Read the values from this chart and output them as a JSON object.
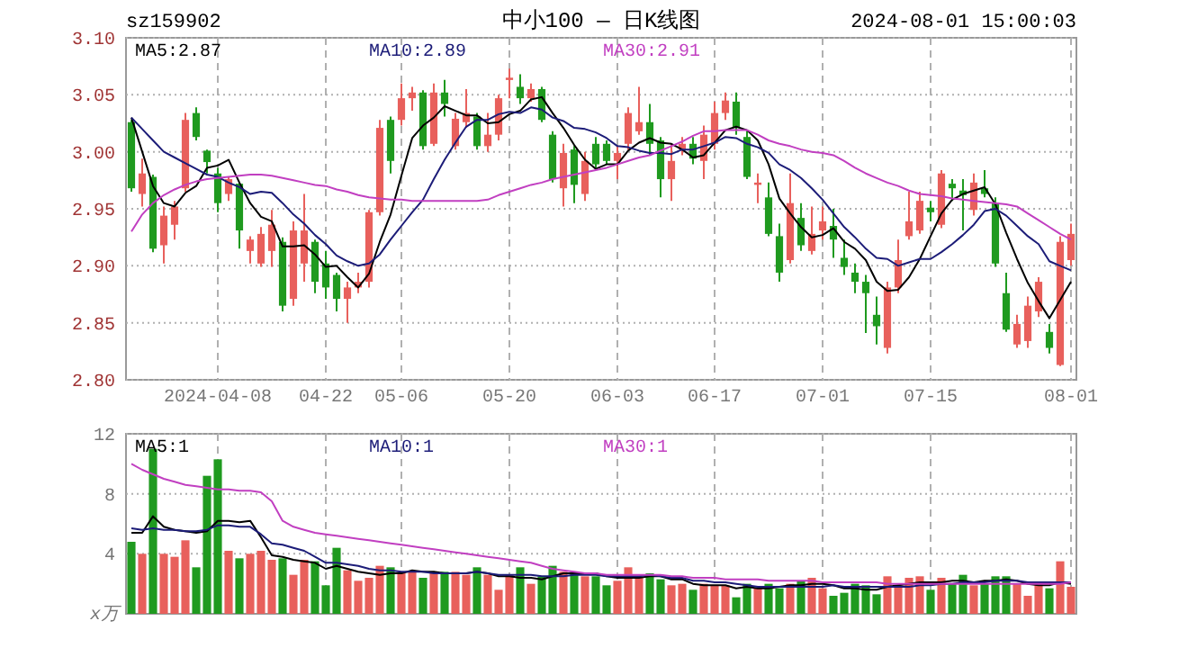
{
  "chart_data": [
    {
      "type": "candlestick",
      "title": "中小100 — 日K线图",
      "subtitle": "sz159902",
      "annotations": [
        "2024-08-01 15:00:03"
      ],
      "categories": [
        null,
        null,
        null,
        null,
        null,
        null,
        null,
        null,
        "2024-04-08",
        null,
        null,
        null,
        null,
        null,
        null,
        null,
        null,
        null,
        "04-22",
        null,
        null,
        null,
        null,
        null,
        null,
        "05-06",
        null,
        null,
        null,
        null,
        null,
        null,
        null,
        null,
        null,
        "05-20",
        null,
        null,
        null,
        null,
        null,
        null,
        null,
        null,
        null,
        "06-03",
        null,
        null,
        null,
        null,
        null,
        null,
        null,
        null,
        "06-17",
        null,
        null,
        null,
        null,
        null,
        null,
        null,
        null,
        null,
        "07-01",
        null,
        null,
        null,
        null,
        null,
        null,
        null,
        null,
        null,
        "07-15",
        null,
        null,
        null,
        null,
        null,
        null,
        null,
        null,
        null,
        null,
        null,
        null,
        "08-01"
      ],
      "ylim": [
        2.8,
        3.1
      ],
      "yticks": [
        {
          "value": 2.8,
          "label": "2.80"
        },
        {
          "value": 2.85,
          "label": "2.85"
        },
        {
          "value": 2.9,
          "label": "2.90"
        },
        {
          "value": 2.95,
          "label": "2.95"
        },
        {
          "value": 3.0,
          "label": "3.00"
        },
        {
          "value": 3.05,
          "label": "3.05"
        },
        {
          "value": 3.1,
          "label": "3.10"
        }
      ],
      "grid": true,
      "legend": "top",
      "series": [
        {
          "ohlc": [
            [
              3.026,
              3.028,
              2.965,
              2.968
            ],
            [
              2.963,
              2.994,
              2.952,
              2.981
            ],
            [
              2.978,
              2.98,
              2.912,
              2.915
            ],
            [
              2.918,
              2.952,
              2.902,
              2.944
            ],
            [
              2.936,
              2.957,
              2.923,
              2.952
            ],
            [
              2.968,
              3.034,
              2.965,
              3.028
            ],
            [
              3.034,
              3.039,
              3.01,
              3.013
            ],
            [
              3.001,
              3.002,
              2.981,
              2.991
            ],
            [
              2.981,
              2.986,
              2.947,
              2.955
            ],
            [
              2.963,
              2.978,
              2.957,
              2.976
            ],
            [
              2.972,
              2.973,
              2.915,
              2.931
            ],
            [
              2.913,
              2.926,
              2.902,
              2.923
            ],
            [
              2.902,
              2.934,
              2.899,
              2.928
            ],
            [
              2.913,
              2.949,
              2.899,
              2.936
            ],
            [
              2.921,
              2.925,
              2.86,
              2.865
            ],
            [
              2.871,
              2.939,
              2.865,
              2.931
            ],
            [
              2.902,
              2.963,
              2.886,
              2.931
            ],
            [
              2.921,
              2.923,
              2.876,
              2.886
            ],
            [
              2.902,
              2.913,
              2.871,
              2.881
            ],
            [
              2.892,
              2.894,
              2.86,
              2.871
            ],
            [
              2.871,
              2.886,
              2.85,
              2.881
            ],
            [
              2.881,
              2.894,
              2.876,
              2.886
            ],
            [
              2.886,
              2.949,
              2.881,
              2.947
            ],
            [
              2.947,
              3.028,
              2.944,
              3.021
            ],
            [
              3.028,
              3.031,
              2.981,
              2.992
            ],
            [
              3.028,
              3.06,
              3.023,
              3.047
            ],
            [
              3.047,
              3.057,
              3.036,
              3.052
            ],
            [
              3.052,
              3.054,
              3.002,
              3.005
            ],
            [
              3.007,
              3.06,
              3.005,
              3.052
            ],
            [
              3.052,
              3.063,
              3.031,
              3.042
            ],
            [
              3.005,
              3.034,
              3.002,
              3.029
            ],
            [
              3.026,
              3.055,
              3.021,
              3.034
            ],
            [
              3.031,
              3.034,
              3.002,
              3.005
            ],
            [
              3.005,
              3.034,
              3.0,
              3.015
            ],
            [
              3.015,
              3.05,
              3.01,
              3.047
            ],
            [
              3.063,
              3.073,
              3.047,
              3.065
            ],
            [
              3.057,
              3.068,
              3.042,
              3.047
            ],
            [
              3.047,
              3.06,
              3.044,
              3.055
            ],
            [
              3.055,
              3.057,
              3.026,
              3.028
            ],
            [
              3.015,
              3.018,
              2.973,
              2.976
            ],
            [
              2.968,
              3.007,
              2.952,
              2.999
            ],
            [
              3.002,
              3.005,
              2.955,
              2.971
            ],
            [
              2.963,
              3.0,
              2.957,
              2.992
            ],
            [
              3.007,
              3.013,
              2.986,
              2.989
            ],
            [
              3.007,
              3.01,
              2.989,
              2.992
            ],
            [
              2.992,
              3.005,
              2.976,
              2.999
            ],
            [
              3.007,
              3.039,
              3.002,
              3.034
            ],
            [
              3.018,
              3.057,
              3.015,
              3.026
            ],
            [
              3.026,
              3.042,
              2.997,
              3.007
            ],
            [
              3.01,
              3.013,
              2.96,
              2.976
            ],
            [
              2.976,
              3.007,
              2.957,
              2.992
            ],
            [
              3.002,
              3.013,
              2.997,
              3.007
            ],
            [
              3.007,
              3.013,
              2.989,
              2.994
            ],
            [
              2.992,
              3.023,
              2.976,
              3.015
            ],
            [
              3.007,
              3.044,
              3.002,
              3.034
            ],
            [
              3.034,
              3.052,
              3.028,
              3.045
            ],
            [
              3.044,
              3.052,
              3.015,
              3.021
            ],
            [
              3.013,
              3.018,
              2.976,
              2.978
            ],
            [
              2.971,
              2.981,
              2.955,
              2.973
            ],
            [
              2.96,
              2.973,
              2.926,
              2.928
            ],
            [
              2.926,
              2.937,
              2.886,
              2.894
            ],
            [
              2.905,
              2.981,
              2.902,
              2.955
            ],
            [
              2.942,
              2.955,
              2.913,
              2.918
            ],
            [
              2.913,
              2.952,
              2.91,
              2.928
            ],
            [
              2.931,
              2.952,
              2.923,
              2.939
            ],
            [
              2.935,
              2.95,
              2.907,
              2.923
            ],
            [
              2.907,
              2.923,
              2.892,
              2.899
            ],
            [
              2.894,
              2.902,
              2.876,
              2.886
            ],
            [
              2.886,
              2.892,
              2.841,
              2.876
            ],
            [
              2.857,
              2.873,
              2.831,
              2.847
            ],
            [
              2.828,
              2.886,
              2.823,
              2.881
            ],
            [
              2.881,
              2.923,
              2.876,
              2.905
            ],
            [
              2.926,
              2.965,
              2.923,
              2.939
            ],
            [
              2.931,
              2.965,
              2.928,
              2.957
            ],
            [
              2.951,
              2.957,
              2.939,
              2.947
            ],
            [
              2.936,
              2.984,
              2.933,
              2.981
            ],
            [
              2.972,
              2.976,
              2.957,
              2.968
            ],
            [
              2.966,
              2.976,
              2.931,
              2.962
            ],
            [
              2.949,
              2.981,
              2.944,
              2.973
            ],
            [
              2.968,
              2.984,
              2.96,
              2.963
            ],
            [
              2.955,
              2.96,
              2.899,
              2.902
            ],
            [
              2.876,
              2.894,
              2.842,
              2.844
            ],
            [
              2.831,
              2.857,
              2.828,
              2.849
            ],
            [
              2.834,
              2.873,
              2.828,
              2.865
            ],
            [
              2.86,
              2.89,
              2.855,
              2.886
            ],
            [
              2.842,
              2.849,
              2.823,
              2.828
            ],
            [
              2.813,
              2.926,
              2.812,
              2.921
            ],
            [
              2.905,
              2.937,
              2.9,
              2.928
            ]
          ],
          "colors": [
            "#1f9a1f",
            "#e8605c",
            "#1f9a1f",
            "#e8605c",
            "#e8605c",
            "#e8605c",
            "#1f9a1f",
            "#1f9a1f",
            "#1f9a1f",
            "#e8605c",
            "#1f9a1f",
            "#e8605c",
            "#e8605c",
            "#e8605c",
            "#1f9a1f",
            "#e8605c",
            "#e8605c",
            "#1f9a1f",
            "#1f9a1f",
            "#1f9a1f",
            "#e8605c",
            "#e8605c",
            "#e8605c",
            "#e8605c",
            "#1f9a1f",
            "#e8605c",
            "#e8605c",
            "#1f9a1f",
            "#e8605c",
            "#1f9a1f",
            "#e8605c",
            "#e8605c",
            "#1f9a1f",
            "#e8605c",
            "#e8605c",
            "#e8605c",
            "#1f9a1f",
            "#e8605c",
            "#1f9a1f",
            "#1f9a1f",
            "#e8605c",
            "#1f9a1f",
            "#e8605c",
            "#1f9a1f",
            "#1f9a1f",
            "#e8605c",
            "#e8605c",
            "#e8605c",
            "#1f9a1f",
            "#1f9a1f",
            "#e8605c",
            "#e8605c",
            "#1f9a1f",
            "#e8605c",
            "#e8605c",
            "#e8605c",
            "#1f9a1f",
            "#1f9a1f",
            "#e8605c",
            "#1f9a1f",
            "#1f9a1f",
            "#e8605c",
            "#1f9a1f",
            "#e8605c",
            "#e8605c",
            "#1f9a1f",
            "#1f9a1f",
            "#1f9a1f",
            "#1f9a1f",
            "#1f9a1f",
            "#e8605c",
            "#e8605c",
            "#e8605c",
            "#e8605c",
            "#1f9a1f",
            "#e8605c",
            "#1f9a1f",
            "#1f9a1f",
            "#e8605c",
            "#1f9a1f",
            "#1f9a1f",
            "#1f9a1f",
            "#e8605c",
            "#e8605c",
            "#e8605c",
            "#1f9a1f",
            "#e8605c",
            "#e8605c"
          ]
        },
        {
          "type": "line",
          "name": "MA5:2.87",
          "color": "#000000",
          "values": [
            3.03,
            3.0,
            2.97,
            2.955,
            2.952,
            2.964,
            2.97,
            2.986,
            2.988,
            2.993,
            2.973,
            2.955,
            2.943,
            2.939,
            2.917,
            2.917,
            2.918,
            2.91,
            2.899,
            2.9,
            2.89,
            2.881,
            2.893,
            2.921,
            2.945,
            2.979,
            3.012,
            3.023,
            3.03,
            3.04,
            3.036,
            3.032,
            3.032,
            3.025,
            3.026,
            3.033,
            3.036,
            3.046,
            3.048,
            3.034,
            3.021,
            3.006,
            2.993,
            2.985,
            2.989,
            2.989,
            3.001,
            3.008,
            3.012,
            3.008,
            3.007,
            3.002,
            2.995,
            2.997,
            3.008,
            3.019,
            3.022,
            3.019,
            3.01,
            2.989,
            2.959,
            2.946,
            2.934,
            2.925,
            2.927,
            2.933,
            2.921,
            2.915,
            2.905,
            2.886,
            2.878,
            2.879,
            2.89,
            2.906,
            2.926,
            2.946,
            2.958,
            2.963,
            2.966,
            2.969,
            2.954,
            2.929,
            2.906,
            2.885,
            2.869,
            2.854,
            2.87,
            2.886
          ]
        },
        {
          "type": "line",
          "name": "MA10:2.89",
          "color": "#1c1c78",
          "values": [
            3.03,
            3.02,
            3.01,
            3.0,
            2.995,
            2.99,
            2.985,
            2.98,
            2.978,
            2.973,
            2.969,
            2.963,
            2.965,
            2.964,
            2.955,
            2.945,
            2.937,
            2.927,
            2.919,
            2.909,
            2.904,
            2.9,
            2.902,
            2.91,
            2.923,
            2.935,
            2.947,
            2.958,
            2.976,
            2.993,
            3.008,
            3.022,
            3.028,
            3.028,
            3.033,
            3.035,
            3.034,
            3.039,
            3.037,
            3.03,
            3.027,
            3.021,
            3.02,
            3.017,
            3.012,
            3.005,
            3.004,
            3.001,
            2.999,
            2.999,
            2.998,
            3.002,
            3.002,
            3.005,
            3.008,
            3.013,
            3.012,
            3.007,
            3.004,
            2.999,
            2.989,
            2.984,
            2.977,
            2.968,
            2.958,
            2.946,
            2.934,
            2.925,
            2.915,
            2.907,
            2.906,
            2.9,
            2.903,
            2.906,
            2.906,
            2.912,
            2.919,
            2.927,
            2.936,
            2.948,
            2.95,
            2.944,
            2.935,
            2.926,
            2.919,
            2.904,
            2.9,
            2.896
          ]
        },
        {
          "type": "line",
          "name": "MA30:2.91",
          "color": "#c13fc1",
          "values": [
            2.93,
            2.945,
            2.955,
            2.962,
            2.967,
            2.971,
            2.974,
            2.976,
            2.977,
            2.978,
            2.979,
            2.98,
            2.98,
            2.979,
            2.977,
            2.975,
            2.973,
            2.971,
            2.97,
            2.967,
            2.965,
            2.962,
            2.96,
            2.959,
            2.958,
            2.958,
            2.957,
            2.957,
            2.957,
            2.957,
            2.957,
            2.957,
            2.957,
            2.958,
            2.962,
            2.965,
            2.968,
            2.971,
            2.973,
            2.976,
            2.978,
            2.98,
            2.982,
            2.984,
            2.986,
            2.989,
            2.992,
            2.995,
            2.997,
            3.001,
            3.005,
            3.009,
            3.014,
            3.018,
            3.018,
            3.019,
            3.019,
            3.019,
            3.015,
            3.01,
            3.007,
            3.005,
            3.002,
            3.0,
            2.999,
            2.997,
            2.992,
            2.986,
            2.981,
            2.977,
            2.973,
            2.97,
            2.966,
            2.963,
            2.962,
            2.961,
            2.959,
            2.958,
            2.957,
            2.956,
            2.955,
            2.954,
            2.952,
            2.946,
            2.94,
            2.934,
            2.928,
            2.923
          ]
        }
      ]
    },
    {
      "type": "bar",
      "ylabel": "x万",
      "tick_labels": "y",
      "categories": [
        null,
        null,
        null,
        null,
        null,
        null,
        null,
        null,
        null,
        null,
        null,
        null,
        null,
        null,
        null,
        null,
        null,
        null,
        null,
        null,
        null,
        null,
        null,
        null,
        null,
        null,
        null,
        null,
        null,
        null,
        null,
        null,
        null,
        null,
        null,
        null,
        null,
        null,
        null,
        null,
        null,
        null,
        null,
        null,
        null,
        null,
        null,
        null,
        null,
        null,
        null,
        null,
        null,
        null,
        null,
        null,
        null,
        null,
        null,
        null,
        null,
        null,
        null,
        null,
        null,
        null,
        null,
        null,
        null,
        null,
        null,
        null,
        null,
        null,
        null,
        null,
        null,
        null,
        null,
        null,
        null,
        null,
        null,
        null,
        null,
        null,
        null,
        null
      ],
      "ylim": [
        0,
        12
      ],
      "yticks": [
        4,
        8,
        12
      ],
      "grid": true,
      "legend": "top",
      "series": [
        {
          "values": [
            4.8,
            4.0,
            11.0,
            4.0,
            3.8,
            4.9,
            3.1,
            9.2,
            10.3,
            4.2,
            3.7,
            4.0,
            4.2,
            3.6,
            3.7,
            2.6,
            3.6,
            3.5,
            1.9,
            4.4,
            2.9,
            2.2,
            2.4,
            3.2,
            3.1,
            2.8,
            2.8,
            2.4,
            2.8,
            2.8,
            2.8,
            2.6,
            3.1,
            2.6,
            1.6,
            2.6,
            3.1,
            2.0,
            2.5,
            3.2,
            2.8,
            2.8,
            2.5,
            2.5,
            1.9,
            2.2,
            3.1,
            2.4,
            2.7,
            2.3,
            1.9,
            2.0,
            1.6,
            2.0,
            1.9,
            1.9,
            1.1,
            2.0,
            1.7,
            2.0,
            1.7,
            2.0,
            2.2,
            2.4,
            1.7,
            1.2,
            1.4,
            2.0,
            1.9,
            1.3,
            2.5,
            1.9,
            2.4,
            2.5,
            1.6,
            2.4,
            2.0,
            2.6,
            1.9,
            2.0,
            2.5,
            2.5,
            2.0,
            1.2,
            2.0,
            1.7,
            3.5,
            1.8
          ],
          "colors": [
            "#1f9a1f",
            "#e8605c",
            "#1f9a1f",
            "#e8605c",
            "#e8605c",
            "#e8605c",
            "#1f9a1f",
            "#1f9a1f",
            "#1f9a1f",
            "#e8605c",
            "#1f9a1f",
            "#e8605c",
            "#e8605c",
            "#e8605c",
            "#1f9a1f",
            "#e8605c",
            "#e8605c",
            "#1f9a1f",
            "#1f9a1f",
            "#1f9a1f",
            "#e8605c",
            "#e8605c",
            "#e8605c",
            "#e8605c",
            "#1f9a1f",
            "#e8605c",
            "#e8605c",
            "#1f9a1f",
            "#e8605c",
            "#1f9a1f",
            "#e8605c",
            "#e8605c",
            "#1f9a1f",
            "#e8605c",
            "#e8605c",
            "#e8605c",
            "#1f9a1f",
            "#e8605c",
            "#1f9a1f",
            "#1f9a1f",
            "#e8605c",
            "#1f9a1f",
            "#e8605c",
            "#1f9a1f",
            "#1f9a1f",
            "#e8605c",
            "#e8605c",
            "#e8605c",
            "#1f9a1f",
            "#1f9a1f",
            "#e8605c",
            "#e8605c",
            "#1f9a1f",
            "#e8605c",
            "#e8605c",
            "#e8605c",
            "#1f9a1f",
            "#1f9a1f",
            "#e8605c",
            "#1f9a1f",
            "#1f9a1f",
            "#e8605c",
            "#1f9a1f",
            "#e8605c",
            "#e8605c",
            "#1f9a1f",
            "#1f9a1f",
            "#1f9a1f",
            "#1f9a1f",
            "#1f9a1f",
            "#e8605c",
            "#e8605c",
            "#e8605c",
            "#e8605c",
            "#1f9a1f",
            "#e8605c",
            "#1f9a1f",
            "#1f9a1f",
            "#e8605c",
            "#1f9a1f",
            "#1f9a1f",
            "#1f9a1f",
            "#e8605c",
            "#e8605c",
            "#e8605c",
            "#1f9a1f",
            "#e8605c",
            "#e8605c"
          ]
        },
        {
          "type": "line",
          "name": "MA5:1",
          "color": "#000000",
          "values": [
            5.4,
            5.4,
            6.5,
            5.8,
            5.6,
            5.5,
            5.4,
            5.5,
            6.2,
            6.2,
            6.1,
            6.2,
            5.1,
            3.9,
            3.8,
            3.6,
            3.5,
            3.4,
            3.0,
            3.2,
            3.0,
            2.8,
            2.7,
            2.6,
            2.7,
            2.7,
            2.9,
            2.8,
            2.8,
            2.7,
            2.7,
            2.7,
            2.8,
            2.7,
            2.5,
            2.5,
            2.4,
            2.4,
            2.3,
            2.5,
            2.7,
            2.7,
            2.7,
            2.7,
            2.5,
            2.4,
            2.4,
            2.4,
            2.5,
            2.5,
            2.3,
            2.3,
            2.0,
            1.9,
            1.9,
            1.9,
            1.7,
            1.8,
            1.7,
            1.7,
            1.8,
            1.9,
            1.9,
            2.0,
            2.0,
            1.9,
            1.7,
            1.7,
            1.6,
            1.6,
            1.8,
            1.9,
            2.0,
            2.1,
            2.1,
            2.1,
            2.2,
            2.2,
            2.1,
            2.2,
            2.2,
            2.3,
            2.2,
            2.0,
            1.9,
            1.9,
            2.1,
            2.0
          ]
        },
        {
          "type": "line",
          "name": "MA10:1",
          "color": "#1c1c78",
          "values": [
            5.7,
            5.6,
            5.7,
            5.6,
            5.6,
            5.5,
            5.5,
            5.6,
            5.9,
            5.9,
            5.8,
            5.8,
            5.3,
            4.7,
            4.6,
            4.4,
            4.2,
            3.8,
            3.4,
            3.4,
            3.3,
            3.2,
            3.0,
            2.9,
            2.9,
            2.8,
            2.8,
            2.8,
            2.7,
            2.7,
            2.7,
            2.7,
            2.8,
            2.7,
            2.6,
            2.6,
            2.6,
            2.6,
            2.5,
            2.5,
            2.5,
            2.6,
            2.6,
            2.6,
            2.5,
            2.5,
            2.5,
            2.5,
            2.6,
            2.5,
            2.4,
            2.4,
            2.2,
            2.2,
            2.1,
            2.1,
            2.0,
            1.9,
            1.8,
            1.8,
            1.8,
            1.8,
            1.8,
            1.8,
            1.8,
            1.9,
            1.8,
            1.8,
            1.8,
            1.8,
            1.8,
            1.8,
            1.8,
            1.9,
            1.9,
            2.0,
            2.0,
            2.1,
            2.1,
            2.1,
            2.2,
            2.2,
            2.2,
            2.1,
            2.1,
            2.1,
            2.1,
            2.1
          ]
        },
        {
          "type": "line",
          "name": "MA30:1",
          "color": "#c13fc1",
          "values": [
            10.0,
            9.6,
            9.3,
            9.0,
            8.8,
            8.6,
            8.5,
            8.4,
            8.3,
            8.3,
            8.2,
            8.2,
            8.1,
            7.5,
            6.2,
            5.8,
            5.6,
            5.4,
            5.3,
            5.2,
            5.1,
            5.0,
            4.9,
            4.8,
            4.7,
            4.6,
            4.5,
            4.4,
            4.3,
            4.2,
            4.1,
            4.0,
            3.9,
            3.8,
            3.7,
            3.6,
            3.5,
            3.4,
            3.2,
            3.0,
            2.9,
            2.8,
            2.7,
            2.7,
            2.6,
            2.6,
            2.6,
            2.6,
            2.6,
            2.6,
            2.5,
            2.5,
            2.4,
            2.4,
            2.4,
            2.3,
            2.3,
            2.3,
            2.3,
            2.2,
            2.2,
            2.2,
            2.2,
            2.2,
            2.1,
            2.1,
            2.1,
            2.1,
            2.1,
            2.1,
            2.0,
            2.0,
            2.0,
            2.0,
            2.0,
            2.0,
            2.0,
            2.0,
            2.0,
            2.0,
            2.0,
            2.0,
            2.0,
            2.0,
            2.0,
            2.0,
            2.0,
            2.1
          ]
        }
      ]
    }
  ]
}
